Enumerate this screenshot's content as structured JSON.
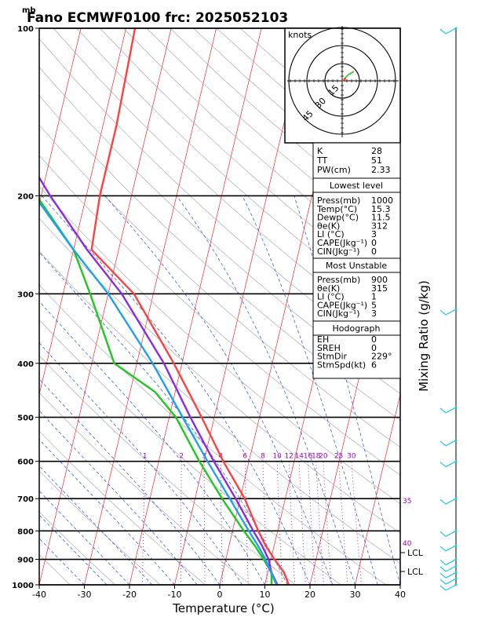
{
  "title": "Fano ECMWF0100  frc: 2025052103",
  "pressure_unit": "mb",
  "xlabel": "Temperature (°C)",
  "right_label": "Mixing Ratio  (g/kg)",
  "hodograph": {
    "unit": "knots",
    "ring_labels": [
      "15",
      "30",
      "45"
    ]
  },
  "mixing_ratio_labels": [
    "1",
    "2",
    "3",
    "4",
    "6",
    "8",
    "10",
    "12",
    "14",
    "16",
    "18",
    "20",
    "25",
    "30"
  ],
  "theta_labels": [
    {
      "p": 700,
      "text": "35"
    },
    {
      "p": 870,
      "text": "40"
    }
  ],
  "lcl_labels": [
    {
      "p": 888,
      "text": "LCL"
    },
    {
      "p": 960,
      "text": "LCL"
    }
  ],
  "colors": {
    "temperature": "#ff4040",
    "dewpoint": "#1ec81e",
    "parcel": "#8a2be2",
    "wetbulb": "#1ea0f0",
    "isotherm": "#ff0000",
    "mixing_ratio": "#a000c8",
    "adiabat": "#1e50dc"
  },
  "stats": [
    {
      "key": "K",
      "value": "28"
    },
    {
      "key": "TT",
      "value": "51"
    },
    {
      "key": "PW(cm)",
      "value": "2.33"
    }
  ],
  "lowest_level": {
    "title": "Lowest level",
    "rows": [
      {
        "key": "Press(mb)",
        "value": "1000"
      },
      {
        "key": "Temp(°C)",
        "value": "15.3"
      },
      {
        "key": "Dewp(°C)",
        "value": "11.5"
      },
      {
        "key": "θe(K)",
        "value": "312"
      },
      {
        "key": "LI (°C)",
        "value": "3"
      },
      {
        "key": "CAPE(Jkg⁻¹)",
        "value": "0"
      },
      {
        "key": "CIN(Jkg⁻¹)",
        "value": "0"
      }
    ]
  },
  "most_unstable": {
    "title": "Most Unstable",
    "rows": [
      {
        "key": "Press(mb)",
        "value": "900"
      },
      {
        "key": "θe(K)",
        "value": "315"
      },
      {
        "key": "LI (°C)",
        "value": "1"
      },
      {
        "key": "CAPE(Jkg⁻¹)",
        "value": "5"
      },
      {
        "key": "CIN(Jkg⁻¹)",
        "value": "3"
      }
    ]
  },
  "hodograph_table": {
    "title": "Hodograph",
    "rows": [
      {
        "key": "EH",
        "value": "0"
      },
      {
        "key": "SREH",
        "value": "0"
      },
      {
        "key": "StmDir",
        "value": "229°"
      },
      {
        "key": "StmSpd(kt)",
        "value": "6"
      }
    ]
  },
  "chart_data": {
    "type": "line",
    "x_range": [
      -40,
      40
    ],
    "x_ticks": [
      -40,
      -30,
      -20,
      -10,
      0,
      10,
      20,
      30,
      40
    ],
    "y_range": [
      1000,
      100
    ],
    "y_scale": "log-pressure",
    "y_ticks": [
      100,
      200,
      300,
      400,
      500,
      600,
      700,
      800,
      900,
      1000
    ],
    "series": [
      {
        "points": [
          [
            1000,
            15.3
          ],
          [
            950,
            13.6
          ],
          [
            900,
            10.8
          ],
          [
            850,
            8.1
          ],
          [
            800,
            5.7
          ],
          [
            700,
            1
          ],
          [
            600,
            -5.7
          ],
          [
            500,
            -12.8
          ],
          [
            400,
            -21.8
          ],
          [
            300,
            -34.3
          ],
          [
            250,
            -46
          ],
          [
            200,
            -47
          ],
          [
            150,
            -47
          ],
          [
            100,
            -48
          ]
        ]
      },
      {
        "points": [
          [
            1000,
            11.5
          ],
          [
            950,
            10.8
          ],
          [
            900,
            8.4
          ],
          [
            850,
            5.7
          ],
          [
            800,
            2.5
          ],
          [
            700,
            -4
          ],
          [
            600,
            -11
          ],
          [
            500,
            -18.5
          ],
          [
            450,
            -24.5
          ],
          [
            400,
            -35
          ],
          [
            300,
            -44
          ],
          [
            250,
            -50
          ],
          [
            200,
            -61
          ],
          [
            150,
            -70
          ],
          [
            100,
            -80
          ]
        ]
      },
      {
        "points": [
          [
            1000,
            12.8
          ],
          [
            950,
            10.8
          ],
          [
            900,
            9.5
          ],
          [
            850,
            7.3
          ],
          [
            800,
            4.6
          ],
          [
            700,
            -1
          ],
          [
            600,
            -7.8
          ],
          [
            500,
            -15.3
          ],
          [
            400,
            -24
          ],
          [
            300,
            -37
          ],
          [
            250,
            -47
          ],
          [
            200,
            -58
          ],
          [
            150,
            -71
          ],
          [
            100,
            -86
          ]
        ]
      },
      {
        "points": [
          [
            1000,
            12.6
          ],
          [
            950,
            10.7
          ],
          [
            900,
            8.8
          ],
          [
            850,
            6.4
          ],
          [
            800,
            3.6
          ],
          [
            700,
            -2.3
          ],
          [
            600,
            -9.2
          ],
          [
            500,
            -17
          ],
          [
            400,
            -26.5
          ],
          [
            300,
            -40
          ],
          [
            250,
            -50
          ],
          [
            200,
            -61.5
          ],
          [
            150,
            -75
          ],
          [
            100,
            -90
          ]
        ]
      }
    ]
  }
}
